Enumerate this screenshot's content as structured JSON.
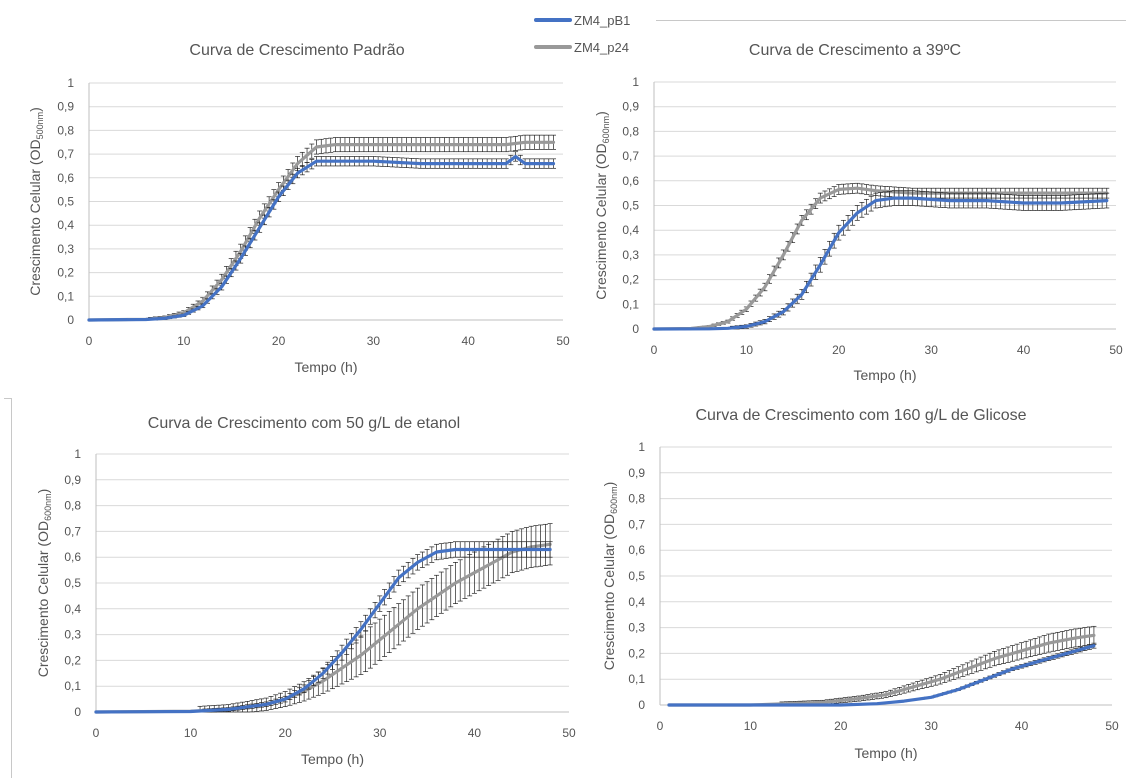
{
  "legend": {
    "items": [
      {
        "label": "ZM4_pB1",
        "color": "#4472c4"
      },
      {
        "label": "ZM4_p24",
        "color": "#999999"
      }
    ]
  },
  "chart_data": [
    {
      "type": "line",
      "title": "Curva de Crescimento Padrão",
      "xlabel": "Tempo (h)",
      "ylabel_main": "Crescimento Celular (OD",
      "ylabel_sub": "500nm",
      "ylabel_end": ")",
      "xlim": [
        0,
        50
      ],
      "ylim": [
        0,
        1
      ],
      "x_ticks": [
        "0",
        "10",
        "20",
        "30",
        "40",
        "50"
      ],
      "y_ticks": [
        "0",
        "0,1",
        "0,2",
        "0,3",
        "0,4",
        "0,5",
        "0,6",
        "0,7",
        "0,8",
        "0,9",
        "1"
      ],
      "grid": true,
      "series": [
        {
          "name": "ZM4_p24",
          "color": "#999999",
          "points": [
            [
              0,
              0
            ],
            [
              6,
              0.003
            ],
            [
              8,
              0.01
            ],
            [
              10,
              0.03
            ],
            [
              12,
              0.08
            ],
            [
              14,
              0.17
            ],
            [
              16,
              0.29
            ],
            [
              18,
              0.43
            ],
            [
              20,
              0.55
            ],
            [
              22,
              0.66
            ],
            [
              24,
              0.73
            ],
            [
              26,
              0.74
            ],
            [
              30,
              0.74
            ],
            [
              35,
              0.74
            ],
            [
              40,
              0.74
            ],
            [
              44,
              0.74
            ],
            [
              46,
              0.75
            ],
            [
              49,
              0.75
            ]
          ],
          "error": 0.03
        },
        {
          "name": "ZM4_pB1",
          "color": "#4472c4",
          "points": [
            [
              0,
              0
            ],
            [
              6,
              0.002
            ],
            [
              8,
              0.007
            ],
            [
              10,
              0.02
            ],
            [
              12,
              0.06
            ],
            [
              14,
              0.14
            ],
            [
              16,
              0.26
            ],
            [
              18,
              0.39
            ],
            [
              20,
              0.52
            ],
            [
              22,
              0.62
            ],
            [
              24,
              0.67
            ],
            [
              26,
              0.67
            ],
            [
              30,
              0.67
            ],
            [
              35,
              0.66
            ],
            [
              40,
              0.66
            ],
            [
              44,
              0.66
            ],
            [
              45,
              0.69
            ],
            [
              46,
              0.66
            ],
            [
              49,
              0.66
            ]
          ],
          "error": 0.02
        }
      ]
    },
    {
      "type": "line",
      "title": "Curva de Crescimento a 39ºC",
      "xlabel": "Tempo (h)",
      "ylabel_main": "Crescimento Celular (OD",
      "ylabel_sub": "600nm",
      "ylabel_end": ")",
      "xlim": [
        0,
        50
      ],
      "ylim": [
        0,
        1
      ],
      "x_ticks": [
        "0",
        "10",
        "20",
        "30",
        "40",
        "50"
      ],
      "y_ticks": [
        "0",
        "0,1",
        "0,2",
        "0,3",
        "0,4",
        "0,5",
        "0,6",
        "0,7",
        "0,8",
        "0,9",
        "1"
      ],
      "grid": true,
      "series": [
        {
          "name": "ZM4_p24",
          "color": "#999999",
          "points": [
            [
              0,
              0
            ],
            [
              4,
              0.002
            ],
            [
              6,
              0.01
            ],
            [
              8,
              0.03
            ],
            [
              10,
              0.08
            ],
            [
              12,
              0.17
            ],
            [
              14,
              0.3
            ],
            [
              16,
              0.44
            ],
            [
              18,
              0.53
            ],
            [
              20,
              0.565
            ],
            [
              22,
              0.57
            ],
            [
              24,
              0.56
            ],
            [
              28,
              0.55
            ],
            [
              32,
              0.55
            ],
            [
              36,
              0.55
            ],
            [
              40,
              0.55
            ],
            [
              44,
              0.55
            ],
            [
              49,
              0.55
            ]
          ],
          "error": 0.02
        },
        {
          "name": "ZM4_pB1",
          "color": "#4472c4",
          "points": [
            [
              0,
              0
            ],
            [
              6,
              0.001
            ],
            [
              8,
              0.003
            ],
            [
              10,
              0.01
            ],
            [
              12,
              0.03
            ],
            [
              14,
              0.07
            ],
            [
              16,
              0.14
            ],
            [
              18,
              0.26
            ],
            [
              20,
              0.39
            ],
            [
              22,
              0.47
            ],
            [
              24,
              0.52
            ],
            [
              26,
              0.53
            ],
            [
              28,
              0.53
            ],
            [
              32,
              0.52
            ],
            [
              36,
              0.52
            ],
            [
              40,
              0.51
            ],
            [
              44,
              0.51
            ],
            [
              49,
              0.52
            ]
          ],
          "error": 0.03
        }
      ]
    },
    {
      "type": "line",
      "title": "Curva de Crescimento com 50 g/L de etanol",
      "xlabel": "Tempo (h)",
      "ylabel_main": "Crescimento Celular (OD",
      "ylabel_sub": "600nm",
      "ylabel_end": ")",
      "xlim": [
        0,
        50
      ],
      "ylim": [
        0,
        1
      ],
      "x_ticks": [
        "0",
        "10",
        "20",
        "30",
        "40",
        "50"
      ],
      "y_ticks": [
        "0",
        "0,1",
        "0,2",
        "0,3",
        "0,4",
        "0,5",
        "0,6",
        "0,7",
        "0,8",
        "0,9",
        "1"
      ],
      "grid": true,
      "series": [
        {
          "name": "ZM4_p24",
          "color": "#999999",
          "points": [
            [
              0,
              0
            ],
            [
              10,
              0.003
            ],
            [
              14,
              0.01
            ],
            [
              18,
              0.03
            ],
            [
              20,
              0.05
            ],
            [
              22,
              0.08
            ],
            [
              24,
              0.12
            ],
            [
              26,
              0.17
            ],
            [
              28,
              0.22
            ],
            [
              30,
              0.28
            ],
            [
              32,
              0.34
            ],
            [
              34,
              0.4
            ],
            [
              36,
              0.45
            ],
            [
              38,
              0.5
            ],
            [
              40,
              0.54
            ],
            [
              42,
              0.58
            ],
            [
              44,
              0.62
            ],
            [
              46,
              0.64
            ],
            [
              48,
              0.65
            ]
          ],
          "error": 0.08
        },
        {
          "name": "ZM4_pB1",
          "color": "#4472c4",
          "points": [
            [
              0,
              0
            ],
            [
              10,
              0.002
            ],
            [
              14,
              0.01
            ],
            [
              18,
              0.03
            ],
            [
              20,
              0.05
            ],
            [
              22,
              0.09
            ],
            [
              24,
              0.15
            ],
            [
              26,
              0.23
            ],
            [
              28,
              0.32
            ],
            [
              30,
              0.42
            ],
            [
              32,
              0.52
            ],
            [
              34,
              0.58
            ],
            [
              36,
              0.62
            ],
            [
              38,
              0.63
            ],
            [
              42,
              0.63
            ],
            [
              46,
              0.63
            ],
            [
              48,
              0.63
            ]
          ],
          "error": 0.03
        }
      ]
    },
    {
      "type": "line",
      "title": "Curva de Crescimento com 160 g/L de Glicose",
      "xlabel": "Tempo (h)",
      "ylabel_main": "Crescimento Celular (OD",
      "ylabel_sub": "600nm",
      "ylabel_end": ")",
      "xlim": [
        0,
        50
      ],
      "ylim": [
        0,
        1
      ],
      "x_ticks": [
        "0",
        "10",
        "20",
        "30",
        "40",
        "50"
      ],
      "y_ticks": [
        "0",
        "0,1",
        "0,2",
        "0,3",
        "0,4",
        "0,5",
        "0,6",
        "0,7",
        "0,8",
        "0,9",
        "1"
      ],
      "grid": true,
      "series": [
        {
          "name": "ZM4_p24",
          "color": "#999999",
          "points": [
            [
              1,
              0
            ],
            [
              10,
              0
            ],
            [
              18,
              0.01
            ],
            [
              22,
              0.025
            ],
            [
              25,
              0.04
            ],
            [
              28,
              0.07
            ],
            [
              31,
              0.1
            ],
            [
              34,
              0.14
            ],
            [
              37,
              0.18
            ],
            [
              40,
              0.21
            ],
            [
              43,
              0.24
            ],
            [
              46,
              0.26
            ],
            [
              48,
              0.27
            ]
          ],
          "error": 0.035
        },
        {
          "name": "ZM4_pB1",
          "color": "#4472c4",
          "points": [
            [
              1,
              0
            ],
            [
              20,
              0
            ],
            [
              24,
              0.005
            ],
            [
              27,
              0.015
            ],
            [
              30,
              0.03
            ],
            [
              33,
              0.06
            ],
            [
              36,
              0.1
            ],
            [
              39,
              0.14
            ],
            [
              42,
              0.17
            ],
            [
              45,
              0.2
            ],
            [
              48,
              0.23
            ]
          ],
          "error": 0.01
        }
      ]
    }
  ]
}
